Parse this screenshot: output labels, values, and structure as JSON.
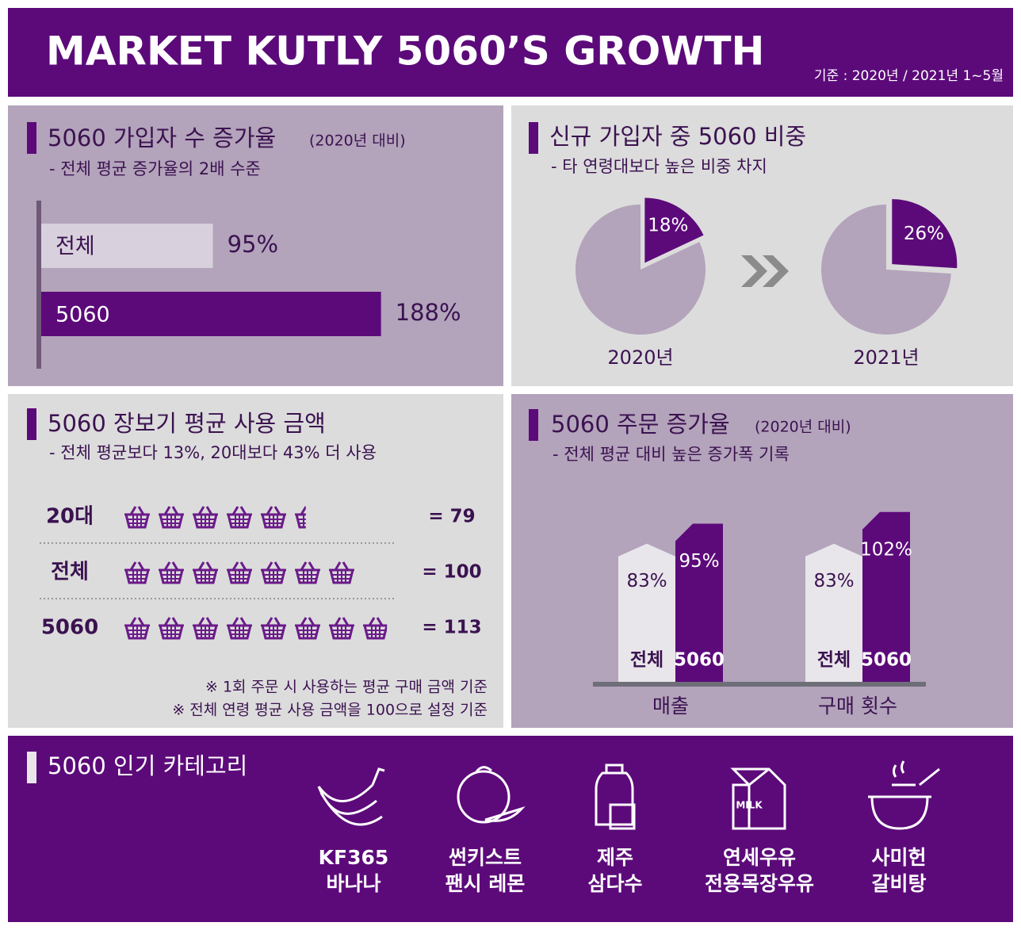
{
  "header": {
    "title": "MARKET KUTLY 5060’S GROWTH",
    "basis": "기준 : 2020년 / 2021년 1~5월"
  },
  "signup_growth": {
    "type": "bar",
    "title": "5060 가입자 수 증가율",
    "note": "(2020년 대비)",
    "subtitle": "- 전체 평균 증가율의 2배 수준",
    "categories": [
      "전체",
      "5060"
    ],
    "values": [
      95,
      188
    ],
    "value_labels": [
      "95%",
      "188%"
    ],
    "colors": [
      "#d8d0dc",
      "#5c0a7a"
    ]
  },
  "share": {
    "type": "pie",
    "title": "신규 가입자 중 5060 비중",
    "subtitle": "- 타 연령대보다 높은 비중 차지",
    "categories": [
      "2020년",
      "2021년"
    ],
    "values": [
      18,
      26
    ],
    "value_labels": [
      "18%",
      "26%"
    ],
    "color": "#5c0a7a"
  },
  "spending": {
    "type": "pictogram",
    "title": "5060 장보기 평균 사용 금액",
    "subtitle": "- 전체 평균보다 13%, 20대보다 43% 더 사용",
    "categories": [
      "20대",
      "전체",
      "5060"
    ],
    "values": [
      79,
      100,
      113
    ],
    "value_labels": [
      "= 79",
      "= 100",
      "= 113"
    ],
    "notes": [
      "※ 1회 주문 시 사용하는 평균 구매 금액 기준",
      "※ 전체 연령 평균 사용 금액을 100으로 설정 기준"
    ],
    "color": "#6b1a8a"
  },
  "orders": {
    "type": "bar",
    "title": "5060 주문 증가율",
    "note": "(2020년 대비)",
    "subtitle": "- 전체 평균 대비 높은 증가폭 기록",
    "categories": [
      "매출",
      "구매 횟수"
    ],
    "series": [
      {
        "name": "전체",
        "color": "#e8e6ea",
        "values": [
          83,
          83
        ],
        "value_labels": [
          "83%",
          "83%"
        ]
      },
      {
        "name": "5060",
        "color": "#5c0a7a",
        "values": [
          95,
          102
        ],
        "value_labels": [
          "95%",
          "102%"
        ]
      }
    ]
  },
  "popular": {
    "title": "5060 인기 카테고리",
    "items": [
      {
        "lines": [
          "KF365",
          "바나나"
        ]
      },
      {
        "lines": [
          "썬키스트",
          "팬시 레몬"
        ]
      },
      {
        "lines": [
          "제주",
          "삼다수"
        ]
      },
      {
        "lines": [
          "연세우유",
          "전용목장우유"
        ],
        "icon_label": "MILK"
      },
      {
        "lines": [
          "사미헌",
          "갈비탕"
        ]
      }
    ]
  }
}
